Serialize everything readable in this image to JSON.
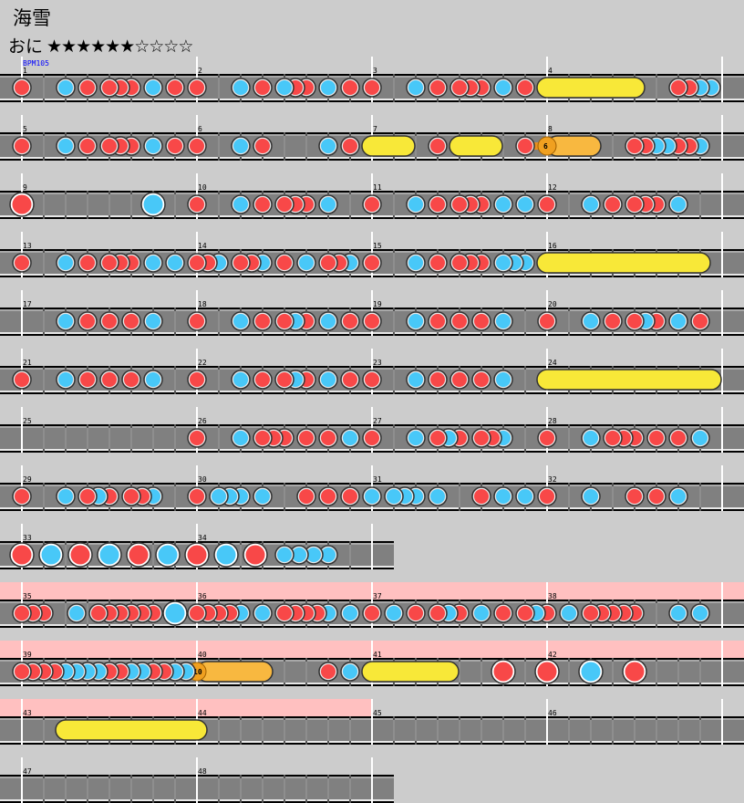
{
  "song": {
    "title": "海雪",
    "difficulty_label": "おに",
    "level": 6,
    "max_level": 10
  },
  "bpm_label": "BPM105",
  "colors": {
    "don": "#f84848",
    "ka": "#48c8f8",
    "roll": "#f8e838",
    "balloon": "#f8b840",
    "gogo": "#ffc0c0",
    "lane": "#808080",
    "background": "#cccccc"
  },
  "note_legend": {
    "1": "don",
    "2": "ka",
    "3": "big-don",
    "4": "big-ka",
    "5": "drumroll-start",
    "7": "balloon-start",
    "8": "roll-end"
  },
  "rows": [
    {
      "measures": [
        {
          "number": "1",
          "notes": "1000201011102010",
          "bpm": true
        },
        {
          "number": "2",
          "notes": "1000201021102010"
        },
        {
          "number": "3",
          "notes": "1000201011102010"
        },
        {
          "number": "4",
          "notes": "5000000080001122"
        }
      ]
    },
    {
      "measures": [
        {
          "number": "5",
          "notes": "1000201011102010"
        },
        {
          "number": "6",
          "notes": "1000201000002010"
        },
        {
          "number": "7",
          "notes": "5008001050080010"
        },
        {
          "number": "8",
          "notes": "7000800011221120",
          "balloon": "6"
        }
      ]
    },
    {
      "measures": [
        {
          "number": "9",
          "notes": "3000000000004000"
        },
        {
          "number": "10",
          "notes": "1000201011102000"
        },
        {
          "number": "11",
          "notes": "1000201011102020"
        },
        {
          "number": "12",
          "notes": "1000201011102000"
        }
      ]
    },
    {
      "measures": [
        {
          "number": "13",
          "notes": "1000201011102020"
        },
        {
          "number": "14",
          "notes": "1120112010201120"
        },
        {
          "number": "15",
          "notes": "1000201011102220"
        },
        {
          "number": "16",
          "notes": "5000000000000080"
        }
      ]
    },
    {
      "measures": [
        {
          "number": "17",
          "notes": "0000201010102000"
        },
        {
          "number": "18",
          "notes": "1000201012102010"
        },
        {
          "number": "19",
          "notes": "1000201010102000"
        },
        {
          "number": "20",
          "notes": "1000201012102010"
        }
      ]
    },
    {
      "measures": [
        {
          "number": "21",
          "notes": "1000201010102000"
        },
        {
          "number": "22",
          "notes": "1000201012102010"
        },
        {
          "number": "23",
          "notes": "1000201010102000"
        },
        {
          "number": "24",
          "notes": "5000000000000008"
        }
      ]
    },
    {
      "measures": [
        {
          "number": "25",
          "notes": "0000000000000000"
        },
        {
          "number": "26",
          "notes": "1000201110101020"
        },
        {
          "number": "27",
          "notes": "1000201210112000"
        },
        {
          "number": "28",
          "notes": "1000201110101020"
        }
      ]
    },
    {
      "measures": [
        {
          "number": "29",
          "notes": "1000201210112000"
        },
        {
          "number": "30",
          "notes": "1022202000101010"
        },
        {
          "number": "31",
          "notes": "2022202000102020"
        },
        {
          "number": "32",
          "notes": "1000200010102000"
        }
      ]
    },
    {
      "measures": [
        {
          "number": "33",
          "notes": "343434"
        },
        {
          "number": "34",
          "notes": "300040003000202020200000"
        }
      ]
    },
    {
      "measures": [
        {
          "number": "35",
          "notes": "1110020111111040",
          "gogo": true
        },
        {
          "number": "36",
          "notes": "1111202011112020",
          "gogo": true
        },
        {
          "number": "37",
          "notes": "1020101210201012",
          "gogo": true
        },
        {
          "number": "38",
          "notes": "1020111110002020",
          "gogo": true
        }
      ]
    },
    {
      "measures": [
        {
          "number": "39",
          "notes": "1111222211221122",
          "gogo": true
        },
        {
          "number": "40",
          "notes": "7000008000001020",
          "gogo": true,
          "balloon": "10"
        },
        {
          "number": "41",
          "notes": "5000000800003000",
          "gogo": true
        },
        {
          "number": "42",
          "notes": "3000400030000000",
          "gogo": true
        }
      ]
    },
    {
      "measures": [
        {
          "number": "43",
          "notes": "0000500000000000",
          "gogo": true
        },
        {
          "number": "44",
          "notes": "8000000000000000",
          "gogo": true
        },
        {
          "number": "45",
          "notes": "0000000000000000"
        },
        {
          "number": "46",
          "notes": "0000000000000000"
        }
      ]
    },
    {
      "measures": [
        {
          "number": "47",
          "notes": "0000000000000000"
        },
        {
          "number": "48",
          "notes": "0000000000000000"
        }
      ]
    }
  ]
}
